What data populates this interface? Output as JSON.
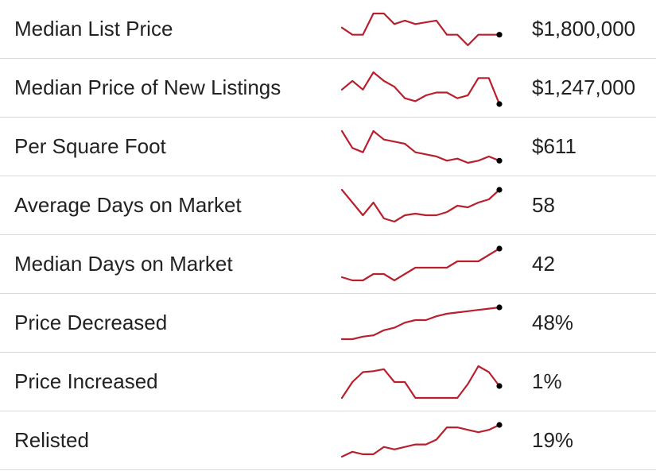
{
  "colors": {
    "line": "#b8202e",
    "end_marker": "#000000",
    "divider": "#d9d9d9",
    "text": "#222222"
  },
  "chart_data": {
    "type": "table",
    "columns": [
      "metric",
      "trend",
      "value"
    ],
    "rows": [
      {
        "label": "Median List Price",
        "value": "$1,800,000",
        "trend": {
          "type": "line",
          "values": [
            22,
            20,
            20,
            26,
            26,
            23,
            24,
            23,
            23.5,
            24,
            20,
            20,
            17,
            20,
            20,
            20
          ]
        }
      },
      {
        "label": "Median Price of New Listings",
        "value": "$1,247,000",
        "trend": {
          "type": "line",
          "values": [
            22,
            25,
            22,
            28,
            25,
            23,
            19,
            18,
            20,
            21,
            21,
            19,
            20,
            26,
            26,
            17
          ]
        }
      },
      {
        "label": "Per Square Foot",
        "value": "$611",
        "trend": {
          "type": "line",
          "values": [
            30,
            26,
            25,
            30,
            28,
            27.5,
            27,
            25,
            24.5,
            24,
            23,
            23.5,
            22.5,
            23,
            24,
            23
          ]
        }
      },
      {
        "label": "Average Days on Market",
        "value": "58",
        "trend": {
          "type": "line",
          "values": [
            30,
            26,
            22,
            26,
            21,
            20,
            22,
            22.5,
            22,
            22,
            23,
            25,
            24.5,
            26,
            27,
            30
          ]
        }
      },
      {
        "label": "Median Days on Market",
        "value": "42",
        "trend": {
          "type": "line",
          "values": [
            21,
            20,
            20,
            22,
            22,
            20,
            22,
            24,
            24,
            24,
            24,
            26,
            26,
            26,
            28,
            30
          ]
        }
      },
      {
        "label": "Price Decreased",
        "value": "48%",
        "trend": {
          "type": "line",
          "values": [
            17,
            17,
            18,
            18.5,
            20.5,
            21.5,
            23.5,
            24.5,
            24.5,
            26,
            27,
            27.5,
            28,
            28.5,
            29,
            29.5
          ]
        }
      },
      {
        "label": "Price Increased",
        "value": "1%",
        "trend": {
          "type": "line",
          "values": [
            0.5,
            1.3,
            1.8,
            1.85,
            1.95,
            1.3,
            1.3,
            0.5,
            0.5,
            0.5,
            0.5,
            0.5,
            1.2,
            2.1,
            1.8,
            1.1
          ]
        }
      },
      {
        "label": "Relisted",
        "value": "19%",
        "trend": {
          "type": "line",
          "values": [
            11,
            12,
            11.5,
            11.5,
            13,
            12.5,
            13,
            13.5,
            13.5,
            14.5,
            17,
            17,
            16.5,
            16,
            16.5,
            17.5
          ]
        }
      }
    ]
  }
}
